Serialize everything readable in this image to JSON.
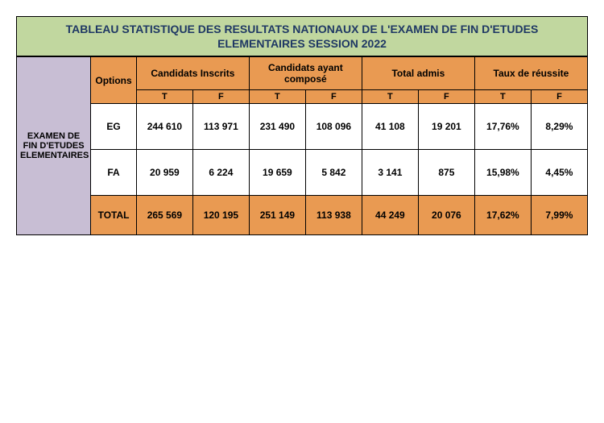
{
  "title_line1": "TABLEAU STATISTIQUE DES RESULTATS NATIONAUX  DE L'EXAMEN DE FIN D'ETUDES",
  "title_line2": "ELEMENTAIRES SESSION 2022",
  "row_group_label": "EXAMEN DE FIN D'ETUDES ELEMENTAIRES",
  "headers": {
    "options": "Options",
    "inscrits": "Candidats Inscrits",
    "compose": "Candidats ayant composé",
    "admis": "Total admis",
    "taux": "Taux de réussite",
    "sub_t": "T",
    "sub_f": "F"
  },
  "rows": [
    {
      "opt": "EG",
      "inscrits_t": "244 610",
      "inscrits_f": "113 971",
      "compose_t": "231 490",
      "compose_f": "108 096",
      "admis_t": "41 108",
      "admis_f": "19 201",
      "taux_t": "17,76%",
      "taux_f": "8,29%"
    },
    {
      "opt": "FA",
      "inscrits_t": "20 959",
      "inscrits_f": "6 224",
      "compose_t": "19 659",
      "compose_f": "5 842",
      "admis_t": "3 141",
      "admis_f": "875",
      "taux_t": "15,98%",
      "taux_f": "4,45%"
    }
  ],
  "total": {
    "label": "TOTAL",
    "inscrits_t": "265 569",
    "inscrits_f": "120 195",
    "compose_t": "251 149",
    "compose_f": "113 938",
    "admis_t": "44 249",
    "admis_f": "20 076",
    "taux_t": "17,62%",
    "taux_f": "7,99%"
  },
  "colors": {
    "title_bg": "#c1d79f",
    "title_text": "#1f3864",
    "header_bg": "#e99a52",
    "rowlabel_bg": "#c8bed4",
    "border": "#000000",
    "data_bg": "#ffffff"
  }
}
